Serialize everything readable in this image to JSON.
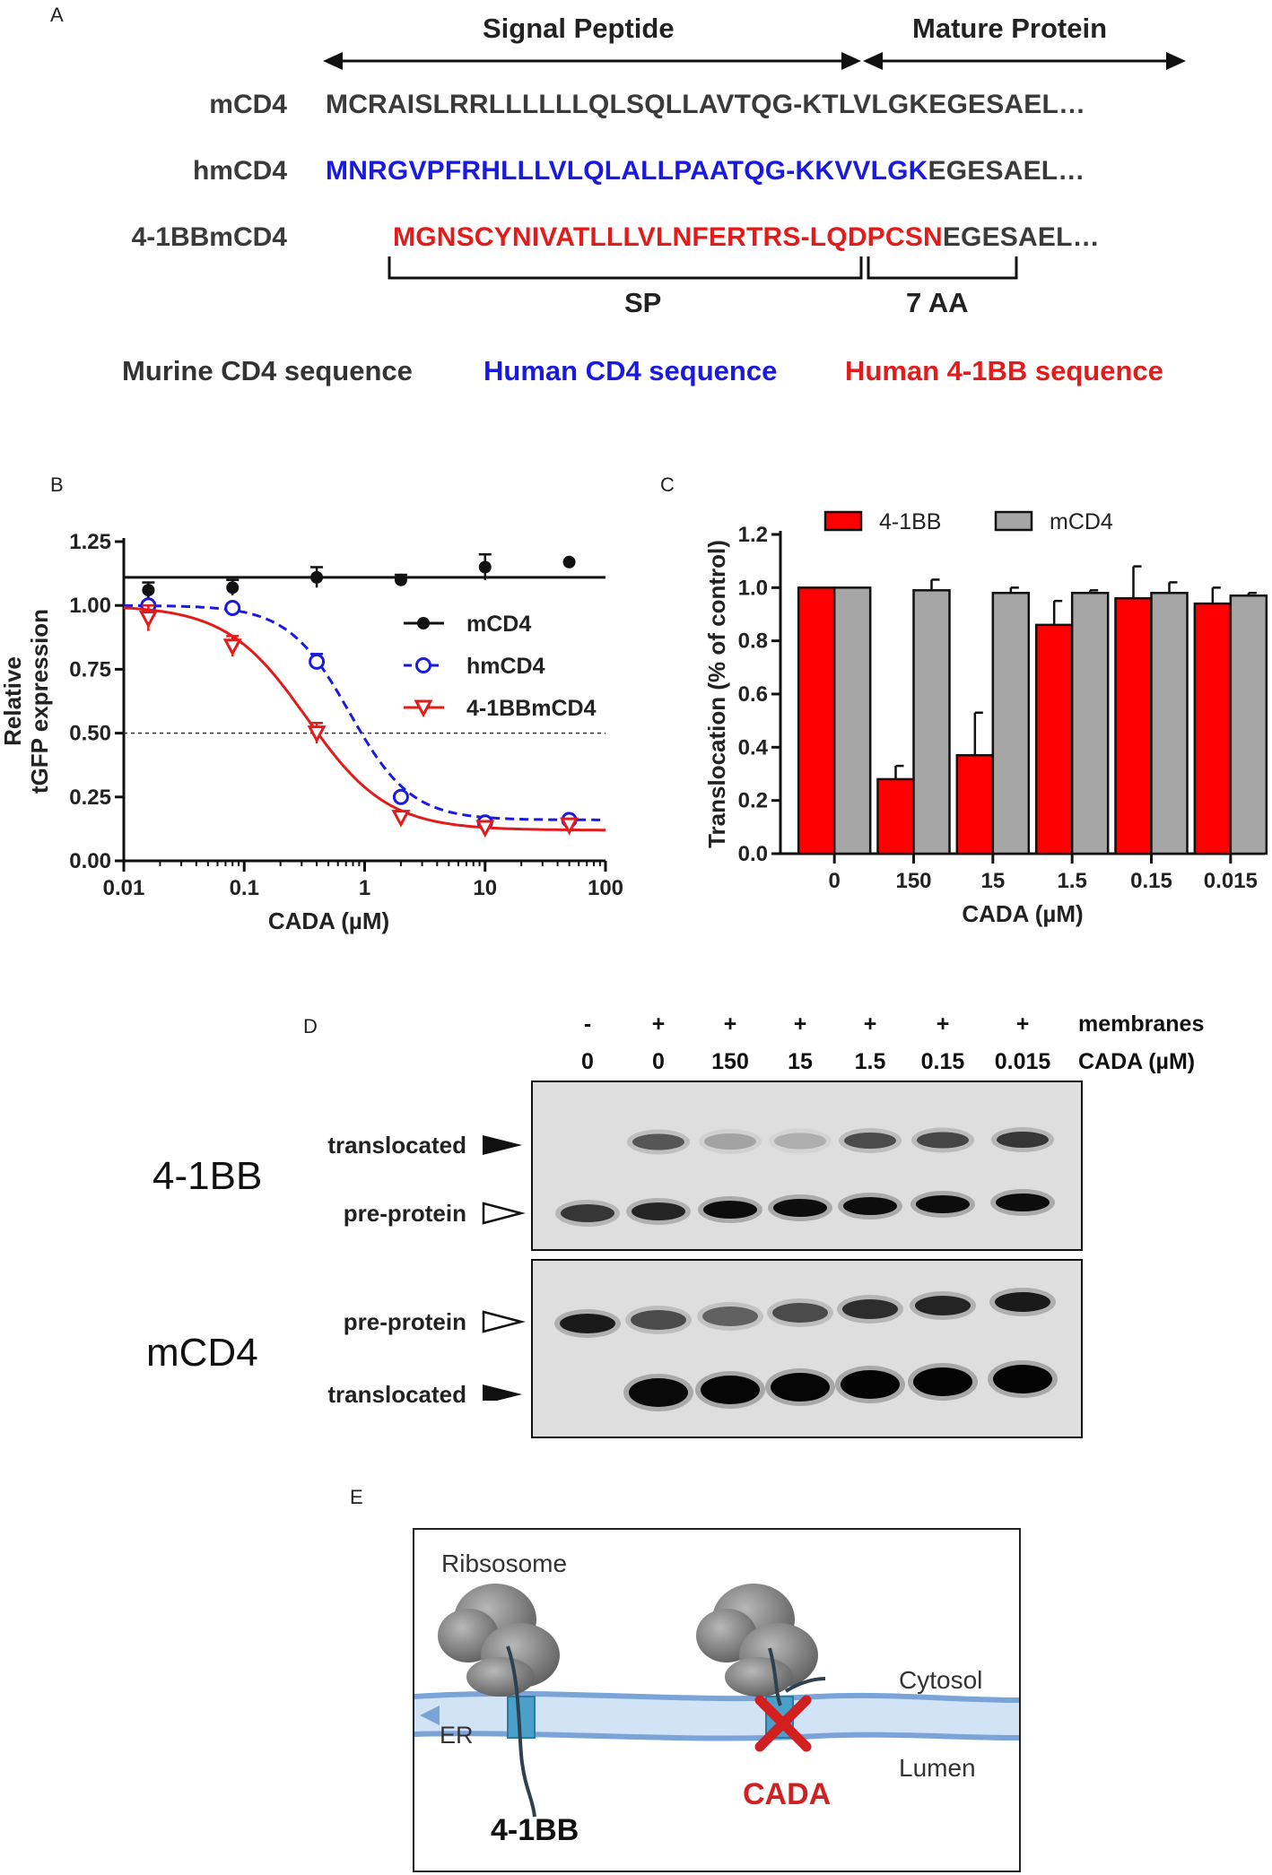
{
  "panel_a": {
    "label": "A",
    "header_signal": "Signal Peptide",
    "header_mature": "Mature Protein",
    "rows": [
      {
        "name": "mCD4",
        "segments": [
          {
            "text": "MCRAISLRRLLLLLLQLSQLLAVTQG-KTLVLGKEGESAEL…",
            "color": "#3a3a3a"
          }
        ]
      },
      {
        "name": "hmCD4",
        "segments": [
          {
            "text": "MNRGVPFRHLLLVLQLALLPAATQG-KKVVLGK",
            "color": "#1a1adf"
          },
          {
            "text": "EGESAEL…",
            "color": "#3a3a3a"
          }
        ]
      },
      {
        "name": "4-1BBmCD4",
        "segments": [
          {
            "text": "MGNSCYNIVATLLLVLNFERTRS-LQDPCSN",
            "color": "#e21b1b"
          },
          {
            "text": "EGESAEL…",
            "color": "#3a3a3a"
          }
        ]
      }
    ],
    "bracket_sp": "SP",
    "bracket_7aa": "7 AA",
    "legend": [
      {
        "text": "Murine CD4 sequence",
        "color": "#3a3a3a"
      },
      {
        "text": "Human CD4 sequence",
        "color": "#1a1adf"
      },
      {
        "text": "Human 4-1BB sequence",
        "color": "#e21b1b"
      }
    ]
  },
  "panel_b": {
    "label": "B",
    "ylabel_line1": "Relative",
    "ylabel_line2": "tGFP expression",
    "xlabel": "CADA (µM)"
  },
  "panel_c": {
    "label": "C",
    "ylabel": "Translocation (% of control)",
    "xlabel": "CADA (µM)"
  },
  "panel_d": {
    "label": "D",
    "col_plus_minus": [
      "-",
      "+",
      "+",
      "+",
      "+",
      "+",
      "+"
    ],
    "col_conc": [
      "0",
      "0",
      "150",
      "15",
      "1.5",
      "0.15",
      "0.015"
    ],
    "row_membranes": "membranes",
    "row_cada": "CADA (µM)",
    "top_blot_name": "4-1BB",
    "bottom_blot_name": "mCD4",
    "top_band_upper": "translocated",
    "top_band_lower": "pre-protein",
    "bottom_band_upper": "pre-protein",
    "bottom_band_lower": "translocated"
  },
  "panel_e": {
    "label": "E",
    "ribosome": "Ribsosome",
    "er": "ER",
    "cytosol": "Cytosol",
    "lumen": "Lumen",
    "protein": "4-1BB",
    "drug": "CADA"
  },
  "chart_data": [
    {
      "type": "scatter",
      "title": "",
      "xlabel": "CADA (µM)",
      "ylabel": "Relative tGFP expression",
      "xscale": "log",
      "xlim": [
        0.01,
        100
      ],
      "ylim": [
        0,
        1.25
      ],
      "xticks": [
        "0.01",
        "0.1",
        "1",
        "10",
        "100"
      ],
      "yticks": [
        "0.00",
        "0.25",
        "0.50",
        "0.75",
        "1.00",
        "1.25"
      ],
      "reference_line_y": 0.5,
      "legend_position": "right",
      "series": [
        {
          "name": "mCD4",
          "color": "#111111",
          "marker": "filled-circle",
          "line": "solid",
          "x": [
            0.016,
            0.08,
            0.4,
            2,
            10,
            50
          ],
          "y": [
            1.06,
            1.07,
            1.11,
            1.1,
            1.15,
            1.17
          ],
          "err": [
            0.03,
            0.03,
            0.04,
            0.02,
            0.05,
            0.0
          ],
          "fit": {
            "kind": "constant",
            "value": 1.11
          }
        },
        {
          "name": "hmCD4",
          "color": "#1a1adf",
          "marker": "open-circle",
          "line": "dashed",
          "x": [
            0.016,
            0.08,
            0.4,
            2,
            10,
            50
          ],
          "y": [
            1.0,
            0.99,
            0.78,
            0.25,
            0.15,
            0.16
          ],
          "err": [
            0.01,
            0.01,
            0.03,
            0.01,
            0.01,
            0.01
          ],
          "fit": {
            "kind": "sigmoid",
            "top": 1.0,
            "bottom": 0.16,
            "ec50": 0.75,
            "hill": 1.7
          }
        },
        {
          "name": "4-1BBmCD4",
          "color": "#e21b1b",
          "marker": "open-triangle-down",
          "line": "solid",
          "x": [
            0.016,
            0.08,
            0.4,
            2,
            10,
            50
          ],
          "y": [
            0.95,
            0.84,
            0.5,
            0.17,
            0.13,
            0.14
          ],
          "err": [
            0.05,
            0.04,
            0.04,
            0.01,
            0.01,
            0.01
          ],
          "fit": {
            "kind": "sigmoid",
            "top": 1.0,
            "bottom": 0.12,
            "ec50": 0.33,
            "hill": 1.3
          }
        }
      ]
    },
    {
      "type": "bar",
      "title": "",
      "xlabel": "CADA (µM)",
      "ylabel": "Translocation (% of control)",
      "ylim": [
        0,
        1.2
      ],
      "yticks": [
        "0.0",
        "0.2",
        "0.4",
        "0.6",
        "0.8",
        "1.0",
        "1.2"
      ],
      "categories": [
        "0",
        "150",
        "15",
        "1.5",
        "0.15",
        "0.015"
      ],
      "legend_position": "top",
      "series": [
        {
          "name": "4-1BB",
          "color": "#ff0000",
          "values": [
            1.0,
            0.28,
            0.37,
            0.86,
            0.96,
            0.94
          ],
          "err": [
            0,
            0.05,
            0.16,
            0.09,
            0.12,
            0.06
          ]
        },
        {
          "name": "mCD4",
          "color": "#a6a6a6",
          "values": [
            1.0,
            0.99,
            0.98,
            0.98,
            0.98,
            0.97
          ],
          "err": [
            0,
            0.04,
            0.02,
            0.01,
            0.04,
            0.01
          ]
        }
      ]
    }
  ]
}
